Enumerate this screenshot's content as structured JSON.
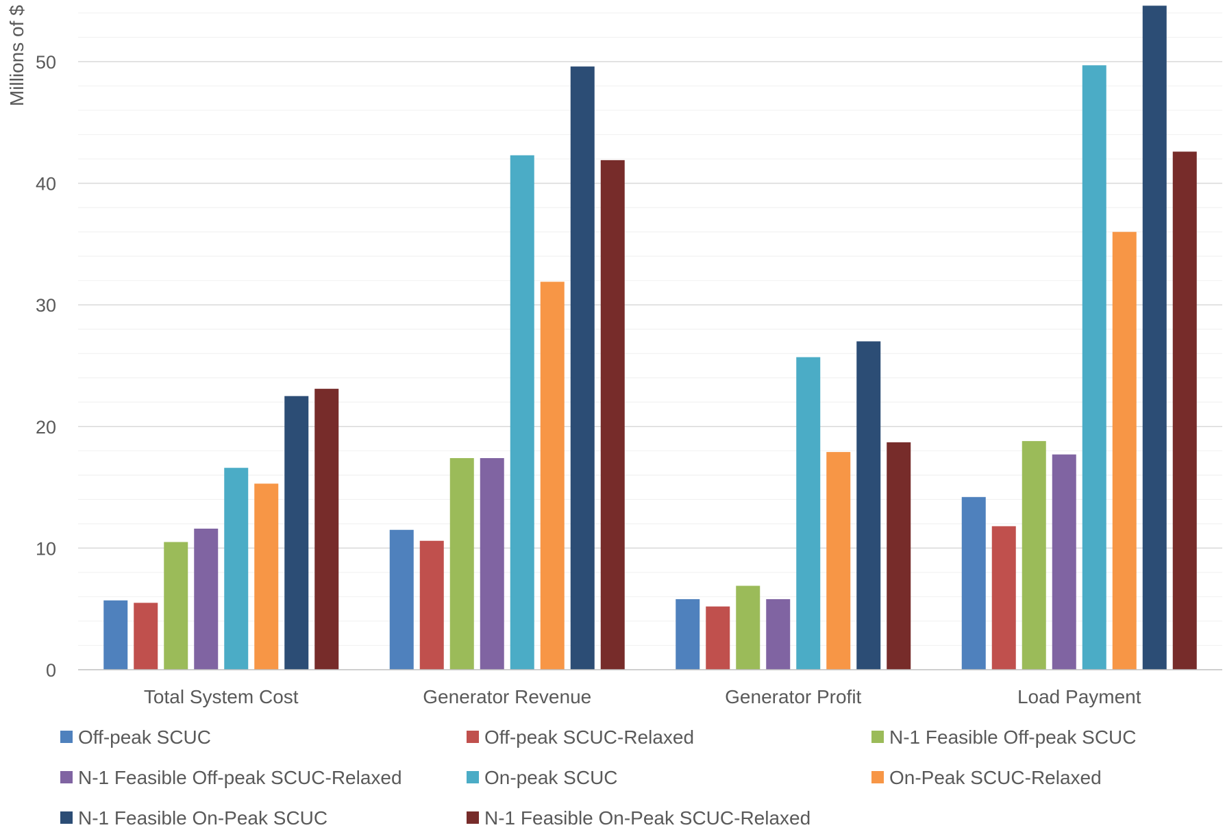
{
  "chart_data": {
    "type": "bar",
    "title": "",
    "xlabel": "",
    "ylabel": "Millions of $",
    "ylim": [
      0,
      55
    ],
    "yticks": [
      0,
      10,
      20,
      30,
      40,
      50
    ],
    "minor_grid_step": 2,
    "grid": true,
    "legend_position": "bottom",
    "categories": [
      "Total System Cost",
      "Generator Revenue",
      "Generator Profit",
      "Load Payment"
    ],
    "series": [
      {
        "name": "Off-peak SCUC",
        "color": "#4F81BD",
        "values": [
          5.7,
          11.5,
          5.8,
          14.2
        ]
      },
      {
        "name": "Off-peak SCUC-Relaxed",
        "color": "#C0504D",
        "values": [
          5.5,
          10.6,
          5.2,
          11.8
        ]
      },
      {
        "name": "N-1 Feasible Off-peak SCUC",
        "color": "#9BBB59",
        "values": [
          10.5,
          17.4,
          6.9,
          18.8
        ]
      },
      {
        "name": "N-1 Feasible Off-peak SCUC-Relaxed",
        "color": "#8064A2",
        "values": [
          11.6,
          17.4,
          5.8,
          17.7
        ]
      },
      {
        "name": "On-peak SCUC",
        "color": "#4BACC6",
        "values": [
          16.6,
          42.3,
          25.7,
          49.7
        ]
      },
      {
        "name": "On-Peak SCUC-Relaxed",
        "color": "#F79646",
        "values": [
          15.3,
          31.9,
          17.9,
          36.0
        ]
      },
      {
        "name": "N-1 Feasible On-Peak SCUC",
        "color": "#2C4D75",
        "values": [
          22.5,
          49.6,
          27.0,
          54.6
        ]
      },
      {
        "name": "N-1 Feasible On-Peak SCUC-Relaxed",
        "color": "#772C2A",
        "values": [
          23.1,
          41.9,
          18.7,
          42.6
        ]
      }
    ]
  }
}
